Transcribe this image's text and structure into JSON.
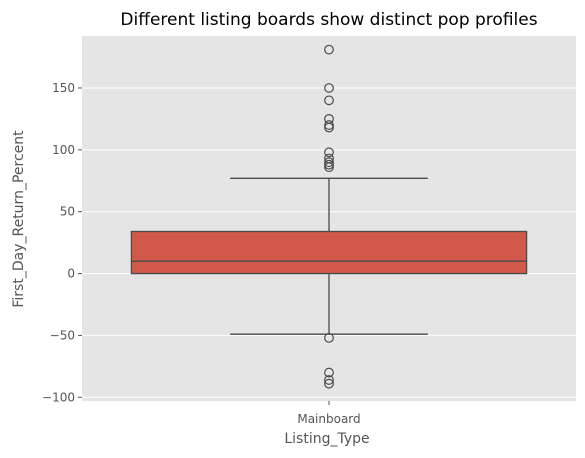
{
  "chart_data": {
    "type": "box",
    "title": "Different listing boards show distinct pop profiles",
    "xlabel": "Listing_Type",
    "ylabel": "First_Day_Return_Percent",
    "categories": [
      "Mainboard"
    ],
    "ylim": [
      -103,
      192
    ],
    "yticks": [
      -100,
      -50,
      0,
      50,
      100,
      150
    ],
    "grid": true,
    "colors": {
      "box": "#d1594a",
      "edge": "#4a4a4a",
      "background": "#e5e5e5",
      "grid": "#ffffff"
    },
    "boxes": [
      {
        "category": "Mainboard",
        "whisker_low": -49,
        "q1": 0,
        "median": 10,
        "q3": 34,
        "whisker_high": 77,
        "outliers": [
          181,
          150,
          140,
          125,
          120,
          118,
          98,
          93,
          90,
          88,
          86,
          -52,
          -80,
          -86,
          -89
        ]
      }
    ]
  }
}
